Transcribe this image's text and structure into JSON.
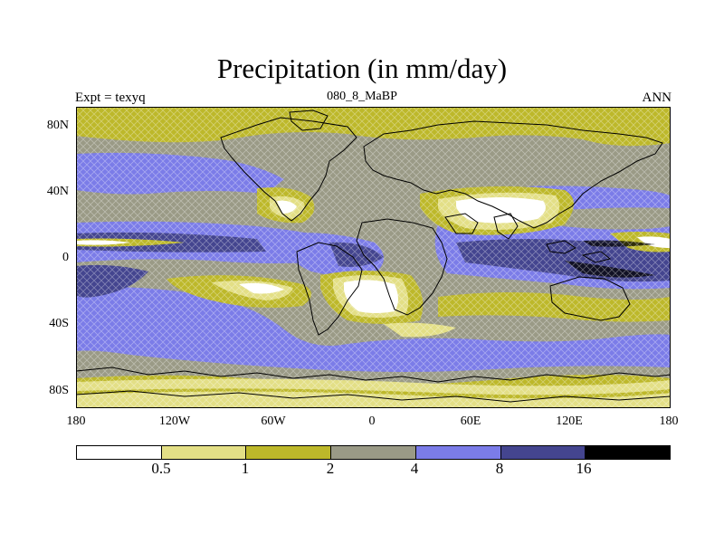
{
  "title": "Precipitation (in mm/day)",
  "subtitle_left": "Expt = texyq",
  "subtitle_center": "080_8_MaBP",
  "subtitle_right": "ANN",
  "y_ticks": [
    "80N",
    "40N",
    "0",
    "40S",
    "80S"
  ],
  "x_ticks": [
    "180",
    "120W",
    "60W",
    "0",
    "60E",
    "120E",
    "180"
  ],
  "colorbar": {
    "labels": [
      "0.5",
      "1",
      "2",
      "4",
      "8",
      "16"
    ],
    "colors": [
      "#ffffff",
      "#e3df86",
      "#bdb82a",
      "#9a9a86",
      "#7b7ce8",
      "#44458f",
      "#000000"
    ]
  },
  "chart_data": {
    "type": "heatmap",
    "title": "Precipitation (in mm/day)",
    "variable": "Precipitation",
    "units": "mm/day",
    "experiment": "texyq",
    "period": "080_8_MaBP",
    "season": "ANN",
    "xlim": [
      -180,
      180
    ],
    "ylim": [
      -90,
      90
    ],
    "contour_levels": [
      0.5,
      1,
      2,
      4,
      8,
      16
    ],
    "fill_colors": [
      "#ffffff",
      "#e3df86",
      "#bdb82a",
      "#9a9a86",
      "#7b7ce8",
      "#44458f",
      "#000000"
    ]
  }
}
